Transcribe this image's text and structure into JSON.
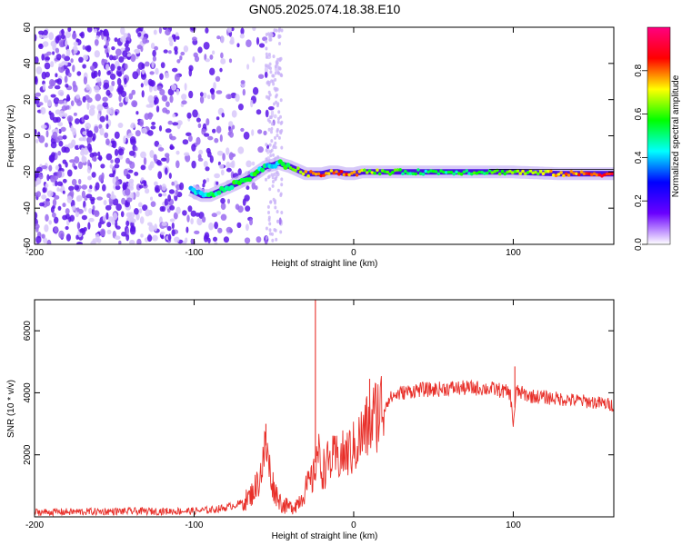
{
  "title": "GN05.2025.074.18.38.E10",
  "chart_data": [
    {
      "type": "heatmap",
      "xlabel": "Height of straight line (km)",
      "ylabel": "Frequency (Hz)",
      "xlim": [
        -200,
        163
      ],
      "ylim": [
        -60,
        60
      ],
      "xticks": [
        -200,
        -100,
        0,
        100
      ],
      "yticks": [
        -60,
        -40,
        -20,
        0,
        20,
        40,
        60
      ],
      "colorbar": {
        "label": "Normalized spectral amplitude",
        "range": [
          0,
          1
        ],
        "ticks": [
          "0.0",
          "0.2",
          "0.4",
          "0.6",
          "0.8"
        ],
        "colors": [
          "#ffffff",
          "#6a00ff",
          "#0000ff",
          "#00ffff",
          "#00ff00",
          "#ffff00",
          "#ff0000",
          "#ff0080"
        ]
      },
      "noise_region_x": [
        -200,
        -45
      ],
      "carrier_track": {
        "x": [
          -102,
          -95,
          -90,
          -85,
          -80,
          -75,
          -70,
          -65,
          -60,
          -55,
          -50,
          -47,
          -44,
          -40,
          -35,
          -30,
          -25,
          -20,
          -15,
          -10,
          -5,
          0,
          5,
          10,
          20,
          40,
          60,
          80,
          100,
          130,
          163
        ],
        "freq": [
          -30,
          -33,
          -33,
          -31,
          -29,
          -27,
          -25,
          -23,
          -20,
          -17,
          -16,
          -15,
          -16,
          -17,
          -19,
          -21,
          -21,
          -21,
          -20,
          -20,
          -21,
          -21,
          -20,
          -20,
          -20,
          -20,
          -20,
          -20,
          -20,
          -21,
          -21
        ],
        "amplitude": [
          0.35,
          0.45,
          0.48,
          0.5,
          0.52,
          0.55,
          0.55,
          0.55,
          0.5,
          0.45,
          0.45,
          0.5,
          0.55,
          0.6,
          0.65,
          0.75,
          0.8,
          0.82,
          0.8,
          0.78,
          0.8,
          0.82,
          0.7,
          0.65,
          0.6,
          0.5,
          0.5,
          0.55,
          0.6,
          0.75,
          0.85
        ]
      }
    },
    {
      "type": "line",
      "xlabel": "Height of straight line (km)",
      "ylabel": "SNR (10 * v/v)",
      "xlim": [
        -200,
        163
      ],
      "ylim": [
        0,
        7000
      ],
      "xticks": [
        -200,
        -100,
        0,
        100
      ],
      "yticks": [
        2000,
        4000,
        6000
      ],
      "color": "#e8302a",
      "envelope": {
        "x": [
          -200,
          -180,
          -160,
          -140,
          -120,
          -100,
          -90,
          -80,
          -70,
          -65,
          -60,
          -57,
          -55,
          -53,
          -50,
          -45,
          -40,
          -35,
          -30,
          -25,
          -23,
          -20,
          -15,
          -10,
          -5,
          0,
          5,
          10,
          15,
          20,
          25,
          30,
          40,
          50,
          60,
          70,
          80,
          90,
          98,
          100,
          102,
          110,
          120,
          130,
          140,
          150,
          163
        ],
        "snr": [
          150,
          160,
          170,
          180,
          180,
          190,
          220,
          300,
          450,
          650,
          1100,
          1700,
          2300,
          1600,
          900,
          400,
          300,
          450,
          900,
          1300,
          2200,
          1500,
          1800,
          1900,
          2000,
          2200,
          2600,
          3000,
          3400,
          3700,
          3900,
          4000,
          4100,
          4100,
          4150,
          4150,
          4150,
          4100,
          4000,
          3000,
          4050,
          3900,
          3850,
          3800,
          3750,
          3700,
          3600
        ]
      },
      "spikes": [
        {
          "x": -24,
          "snr": 7000
        },
        {
          "x": -55,
          "snr": 3000
        },
        {
          "x": 10,
          "snr": 4450
        },
        {
          "x": 101,
          "snr": 4850
        }
      ]
    }
  ]
}
